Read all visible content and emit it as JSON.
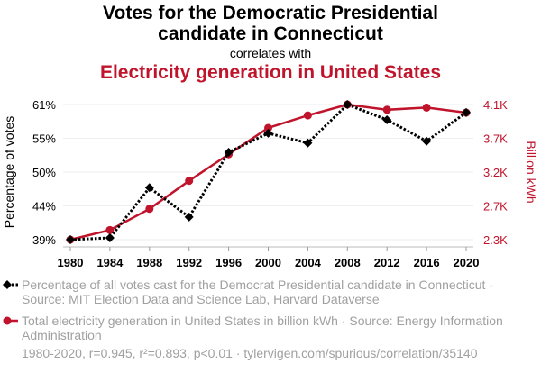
{
  "chart_data": {
    "type": "line",
    "title_line1": "Votes for the Democratic Presidential",
    "title_line2": "candidate in Connecticut",
    "connector": "correlates with",
    "subtitle": "Electricity generation in United States",
    "x": [
      1980,
      1984,
      1988,
      1992,
      1996,
      2000,
      2004,
      2008,
      2012,
      2016,
      2020
    ],
    "x_ticks": [
      "1980",
      "1984",
      "1988",
      "1992",
      "1996",
      "2000",
      "2004",
      "2008",
      "2012",
      "2016",
      "2020"
    ],
    "ylabel_left": "Percentage of votes",
    "ylabel_right": "Billion kWh",
    "ylim_left": [
      38.5,
      60.6
    ],
    "ylim_right": [
      2286,
      4119
    ],
    "y_ticks_left": [
      "39%",
      "44%",
      "50%",
      "55%",
      "61%"
    ],
    "y_ticks_right": [
      "2.3K",
      "2.7K",
      "3.2K",
      "3.7K",
      "4.1K"
    ],
    "grid": true,
    "series": [
      {
        "name": "Percentage of all votes cast for the Democrat Presidential candidate in Connecticut · Source: MIT Election Data and Science Lab, Harvard Dataverse",
        "axis": "left",
        "color": "#000000",
        "style": "dotted",
        "marker": "diamond",
        "values": [
          38.5,
          38.8,
          47.0,
          42.2,
          52.8,
          55.9,
          54.3,
          60.6,
          58.1,
          54.6,
          59.3
        ]
      },
      {
        "name": "Total electricity generation in United States in billion kWh · Source: Energy Information Administration",
        "axis": "right",
        "color": "#c0142c",
        "style": "solid",
        "marker": "circle",
        "values": [
          2286,
          2416,
          2704,
          3084,
          3444,
          3802,
          3971,
          4119,
          4048,
          4077,
          4009
        ]
      }
    ],
    "footer": "1980-2020, r=0.945, r²=0.893, p<0.01 · tylervigen.com/spurious/correlation/35140"
  }
}
